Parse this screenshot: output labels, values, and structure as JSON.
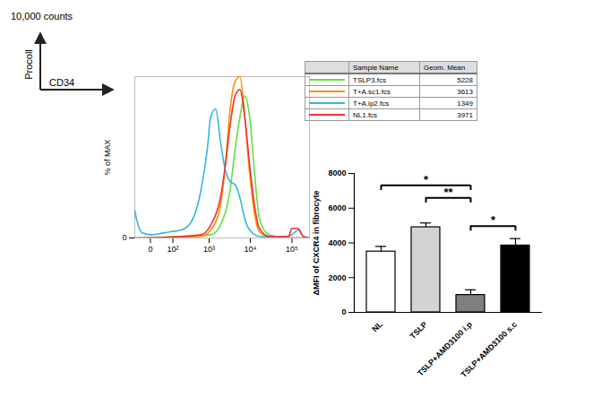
{
  "chart_data": [
    {
      "type": "line",
      "gate_labels": {
        "count": "10,000 counts",
        "y_axis": "Procoll",
        "x_axis": "CD34"
      },
      "ylabel": "% of MAX",
      "log": "x",
      "xlim": [
        -56,
        262144
      ],
      "xticks": [
        0,
        {
          "value": 100,
          "label": "10²"
        },
        {
          "value": 1000,
          "label": "10³"
        },
        {
          "value": 10000,
          "label": "10⁴"
        },
        {
          "value": 100000,
          "label": "10⁵"
        }
      ],
      "ylim": [
        0,
        100
      ],
      "yticks": [
        0
      ],
      "legend_columns": [
        "Sample Name",
        "Geom. Mean"
      ],
      "series": [
        {
          "name": "TSLP3.fcs",
          "color": "#66dd44",
          "geom_mean": 5228,
          "x": [
            -56,
            1095,
            1900,
            3280,
            4310,
            5640,
            7380,
            9680,
            12700,
            16600,
            28300,
            82800,
            262144
          ],
          "values": [
            0,
            2,
            8,
            30,
            55,
            75,
            88,
            75,
            40,
            12,
            2,
            0,
            0
          ]
        },
        {
          "name": "T+A.sc1.fcs",
          "color": "#ff8c00",
          "geom_mean": 3613,
          "x": [
            -56,
            627,
            1095,
            1900,
            2500,
            3280,
            4310,
            5640,
            7380,
            9680,
            12700,
            16600,
            28300,
            262144
          ],
          "values": [
            0,
            1,
            5,
            20,
            45,
            80,
            97,
            100,
            75,
            40,
            15,
            4,
            0.5,
            0
          ]
        },
        {
          "name": "T+A.ip2.fcs",
          "color": "#33b5e5",
          "geom_mean": 1349,
          "x": [
            -56,
            -40,
            -22,
            4.5,
            37,
            92,
            187,
            348,
            627,
            900,
            1095,
            1450,
            1900,
            2500,
            3280,
            4310,
            5640,
            7380,
            9680,
            16600,
            48700,
            100000,
            140000,
            186000,
            262144
          ],
          "values": [
            17,
            8,
            3,
            2,
            3,
            4,
            5,
            10,
            30,
            55,
            75,
            80,
            60,
            42,
            35,
            33,
            25,
            12,
            5,
            1,
            0.5,
            2,
            5,
            1,
            0
          ]
        },
        {
          "name": "NL1.fcs",
          "color": "#ee3333",
          "geom_mean": 3971,
          "x": [
            -56,
            187,
            627,
            1095,
            1900,
            2500,
            3280,
            4310,
            5640,
            7380,
            9680,
            12700,
            16600,
            28300,
            82800,
            100000,
            140000,
            186000,
            262144
          ],
          "values": [
            0,
            1,
            2,
            8,
            25,
            45,
            70,
            88,
            92,
            75,
            45,
            20,
            6,
            1,
            1,
            6,
            6,
            1,
            0
          ]
        }
      ]
    },
    {
      "type": "bar",
      "ylabel": "ΔMFI of CXCR4 in fibrocyte",
      "categories": [
        "NL",
        "TSLP",
        "TSLP+AMD3100 i.p",
        "TSLP+AMD3100 s.c"
      ],
      "values": [
        3500,
        4900,
        1000,
        3850
      ],
      "errors": [
        300,
        250,
        300,
        400
      ],
      "colors": [
        "#ffffff",
        "#d3d3d3",
        "#7f7f7f",
        "#000000"
      ],
      "ylim": [
        0,
        8000
      ],
      "yticks": [
        0,
        2000,
        4000,
        6000,
        8000
      ],
      "significance": [
        {
          "from": "TSLP+AMD3100 i.p",
          "to": "TSLP+AMD3100 s.c",
          "label": "*"
        },
        {
          "from": "TSLP",
          "to": "TSLP+AMD3100 i.p",
          "label": "**"
        },
        {
          "from": "NL",
          "to": "TSLP+AMD3100 i.p",
          "label": "*"
        }
      ]
    }
  ]
}
